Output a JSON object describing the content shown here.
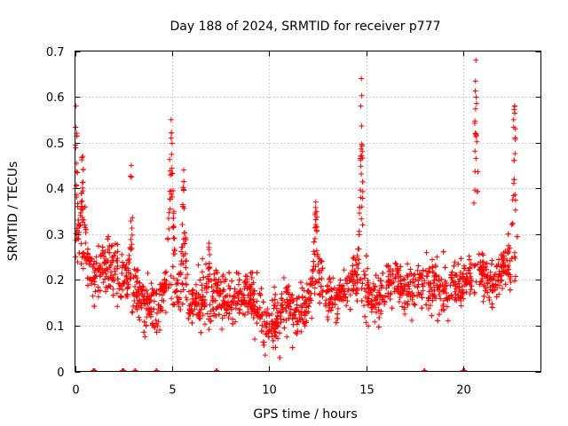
{
  "chart_data": {
    "type": "scatter",
    "title": "Day 188 of 2024, SRMTID for receiver p777",
    "xlabel": "GPS time / hours",
    "ylabel": "SRMTID / TECUs",
    "xlim": [
      0,
      24
    ],
    "ylim": [
      0,
      0.7
    ],
    "xticks": [
      0,
      5,
      10,
      15,
      20
    ],
    "xtick_labels": [
      "0",
      "5",
      "10",
      "15",
      "20"
    ],
    "yticks": [
      0,
      0.1,
      0.2,
      0.3,
      0.4,
      0.5,
      0.6,
      0.7
    ],
    "ytick_labels": [
      "0",
      "0.1",
      "0.2",
      "0.3",
      "0.4",
      "0.5",
      "0.6",
      "0.7"
    ],
    "grid": true,
    "marker": "+",
    "color": "#ff0000",
    "series": [
      {
        "name": "SRMTID",
        "generator": "Approximation of dense point cloud (approx. 2600 points) sampled from the visible trend",
        "n_points": 2600,
        "baseline": [
          [
            0.0,
            0.3
          ],
          [
            0.5,
            0.24
          ],
          [
            1.0,
            0.21
          ],
          [
            1.5,
            0.23
          ],
          [
            2.0,
            0.22
          ],
          [
            2.5,
            0.21
          ],
          [
            3.0,
            0.18
          ],
          [
            3.5,
            0.15
          ],
          [
            4.0,
            0.14
          ],
          [
            4.5,
            0.17
          ],
          [
            5.0,
            0.21
          ],
          [
            5.5,
            0.17
          ],
          [
            6.0,
            0.15
          ],
          [
            6.5,
            0.16
          ],
          [
            7.0,
            0.15
          ],
          [
            7.5,
            0.17
          ],
          [
            8.0,
            0.15
          ],
          [
            8.5,
            0.16
          ],
          [
            9.0,
            0.17
          ],
          [
            9.5,
            0.13
          ],
          [
            10.0,
            0.1
          ],
          [
            10.5,
            0.12
          ],
          [
            11.0,
            0.15
          ],
          [
            11.5,
            0.12
          ],
          [
            12.0,
            0.16
          ],
          [
            12.5,
            0.2
          ],
          [
            13.0,
            0.17
          ],
          [
            13.5,
            0.15
          ],
          [
            14.0,
            0.19
          ],
          [
            14.5,
            0.21
          ],
          [
            15.0,
            0.18
          ],
          [
            15.5,
            0.15
          ],
          [
            16.0,
            0.18
          ],
          [
            16.5,
            0.21
          ],
          [
            17.0,
            0.17
          ],
          [
            17.5,
            0.19
          ],
          [
            18.0,
            0.2
          ],
          [
            18.5,
            0.18
          ],
          [
            19.0,
            0.17
          ],
          [
            19.5,
            0.19
          ],
          [
            20.0,
            0.2
          ],
          [
            20.5,
            0.22
          ],
          [
            21.0,
            0.21
          ],
          [
            21.5,
            0.18
          ],
          [
            22.0,
            0.22
          ],
          [
            22.5,
            0.24
          ],
          [
            22.8,
            0.22
          ]
        ],
        "spread": 0.06,
        "spikes": [
          {
            "x": 0.05,
            "peak": 0.58,
            "width": 0.15
          },
          {
            "x": 0.4,
            "peak": 0.47,
            "width": 0.25
          },
          {
            "x": 2.9,
            "peak": 0.45,
            "width": 0.15
          },
          {
            "x": 4.95,
            "peak": 0.55,
            "width": 0.25
          },
          {
            "x": 5.6,
            "peak": 0.44,
            "width": 0.2
          },
          {
            "x": 6.9,
            "peak": 0.28,
            "width": 0.2
          },
          {
            "x": 12.4,
            "peak": 0.37,
            "width": 0.2
          },
          {
            "x": 14.75,
            "peak": 0.64,
            "width": 0.15
          },
          {
            "x": 20.65,
            "peak": 0.68,
            "width": 0.2
          },
          {
            "x": 22.65,
            "peak": 0.58,
            "width": 0.2
          }
        ],
        "zero_points_x": [
          0.95,
          1.0,
          2.45,
          2.5,
          3.1,
          4.2,
          7.3,
          18.0,
          20.0,
          20.05
        ]
      }
    ]
  }
}
